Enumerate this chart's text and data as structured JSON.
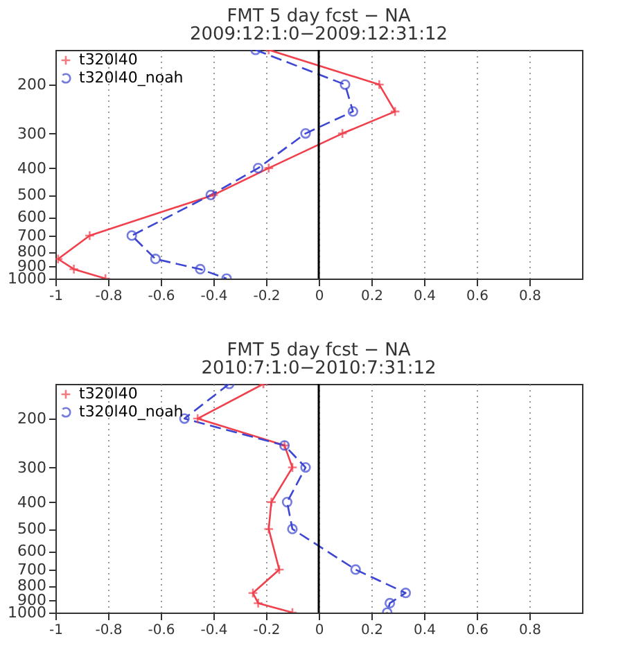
{
  "chart_data": [
    {
      "type": "line",
      "title": "FMT   5 day fcst  −  NA",
      "subtitle": "2009:12:1:0−2009:12:31:12",
      "xlim": [
        -1,
        1
      ],
      "xticks": [
        -1,
        -0.8,
        -0.6,
        -0.4,
        -0.2,
        0,
        0.2,
        0.4,
        0.6,
        0.8
      ],
      "ylim": [
        1000,
        150
      ],
      "yticks": [
        200,
        300,
        400,
        500,
        600,
        700,
        800,
        900,
        1000
      ],
      "log": "y",
      "grid": "x",
      "legend": "top left",
      "ref_lines": [
        {
          "axis": "x",
          "value": 0,
          "color": "#000000"
        }
      ],
      "series": [
        {
          "name": "t320l40",
          "color": "#f0404c",
          "marker": "cross",
          "line_style": "solid",
          "x": [
            -0.19,
            0.23,
            0.29,
            0.09,
            -0.19,
            -0.4,
            -0.87,
            -0.99,
            -0.93,
            -0.81
          ],
          "values": [
            150,
            200,
            250,
            300,
            400,
            500,
            700,
            850,
            925,
            1000
          ]
        },
        {
          "name": "t320l40_noah",
          "color": "#3c46d2",
          "marker": "circle",
          "line_style": "dashed",
          "x": [
            -0.24,
            0.1,
            0.13,
            -0.05,
            -0.23,
            -0.41,
            -0.71,
            -0.62,
            -0.45,
            -0.35
          ],
          "values": [
            150,
            200,
            250,
            300,
            400,
            500,
            700,
            850,
            925,
            1000
          ]
        }
      ]
    },
    {
      "type": "line",
      "title": "FMT   5 day fcst  −  NA",
      "subtitle": "2010:7:1:0−2010:7:31:12",
      "xlim": [
        -1,
        1
      ],
      "xticks": [
        -1,
        -0.8,
        -0.6,
        -0.4,
        -0.2,
        0,
        0.2,
        0.4,
        0.6,
        0.8
      ],
      "ylim": [
        1000,
        150
      ],
      "yticks": [
        200,
        300,
        400,
        500,
        600,
        700,
        800,
        900,
        1000
      ],
      "log": "y",
      "grid": "x",
      "legend": "top left",
      "ref_lines": [
        {
          "axis": "x",
          "value": 0,
          "color": "#000000"
        }
      ],
      "series": [
        {
          "name": "t320l40",
          "color": "#f0404c",
          "marker": "cross",
          "line_style": "solid",
          "x": [
            -0.21,
            -0.46,
            -0.13,
            -0.1,
            -0.18,
            -0.19,
            -0.15,
            -0.25,
            -0.23,
            -0.1
          ],
          "values": [
            150,
            200,
            250,
            300,
            400,
            500,
            700,
            850,
            925,
            1000
          ]
        },
        {
          "name": "t320l40_noah",
          "color": "#3c46d2",
          "marker": "circle",
          "line_style": "dashed",
          "x": [
            -0.34,
            -0.51,
            -0.13,
            -0.05,
            -0.12,
            -0.1,
            0.14,
            0.33,
            0.27,
            0.26
          ],
          "values": [
            150,
            200,
            250,
            300,
            400,
            500,
            700,
            850,
            925,
            1000
          ]
        }
      ]
    }
  ]
}
